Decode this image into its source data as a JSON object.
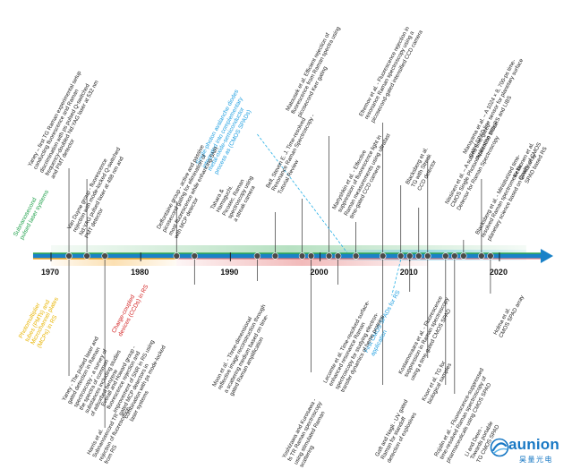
{
  "axis": {
    "years": [
      "1970",
      "1980",
      "1990",
      "2000",
      "2010",
      "2020"
    ],
    "year_values": [
      1970,
      1980,
      1990,
      2000,
      2010,
      2020
    ],
    "range": [
      1970,
      2024
    ]
  },
  "colors": {
    "axis_blue": "#1a82c8",
    "green": "#2fa84f",
    "orange": "#f5a623",
    "red": "#d93a3a",
    "cyan": "#27b0e6",
    "yellow_text": "#e8b400",
    "red_text": "#d21f1f",
    "blue_text": "#1d9ee0",
    "green_text": "#1ea04a"
  },
  "categories": {
    "subnano": [
      "Subnanosecond",
      "pulsed laser systems"
    ],
    "pmt": [
      "Photomultiplier",
      "tubes (PMTs) and",
      "Microchannel plates",
      "(MCPs) in RS"
    ],
    "ccd": [
      "Charge-coupled",
      "devices (CCDs) in RS"
    ],
    "cmos_spad": [
      "Single-photon avalanche diodes",
      "integrated into complementary",
      "metal-oxide-semiconductor",
      "process as (CMOS SPADs)"
    ],
    "first_cmos": [
      "First CMOS SPADs for RS",
      "application"
    ]
  },
  "events_top": [
    {
      "id": "yaney-1972",
      "year": 1972,
      "lines": [
        "Yaney – first TG Raman experimental setup",
        "conducting fluorescence and Raman",
        "discrimination with ps pulsed Q-switched",
        "frequency-doubled Nd:YAG laser at 532 nm",
        "and PMT detector"
      ]
    },
    {
      "id": "van-duyne",
      "year": 1974,
      "lines": [
        "Van Duyne group - fluorescence",
        "rejection with mode-locked Q-switched",
        "Nd:YAG pulsed laser at 488 nm and",
        "PMT detector"
      ]
    },
    {
      "id": "deffontaine",
      "year": 1984,
      "lines": [
        "Deffontaine group - active and passive",
        "picosecond gating for elimination of",
        "most fluorescence while enhancing SNR",
        "with MCP detector"
      ]
    },
    {
      "id": "tahara",
      "year": 1995,
      "lines": [
        "Tahara &",
        "Hamaguchi.",
        "Picosec. Raman",
        "spectroscopy using",
        "a streak camera"
      ]
    },
    {
      "id": "bell",
      "year": 1998,
      "lines": [
        "Bell, Steven E. J. Time-resolved",
        "Resonance Raman Spectroscopy -",
        "Tutorial Review"
      ]
    },
    {
      "id": "matousek",
      "year": 2001,
      "lines": [
        "Matousek et al. Efficient rejection of",
        "fluorescence from Raman spectra using",
        "picosecond Kerr gating"
      ]
    },
    {
      "id": "martyshkin",
      "year": 2004,
      "lines": [
        "Martyshkin et al. - Effective",
        "suppression of fluorescence light in",
        "Raman measurements using ultrafast",
        "time-gated CCD camera"
      ]
    },
    {
      "id": "efremov",
      "year": 2007,
      "lines": [
        "Efremov et al. - Fluorescence rejection in",
        "resonance Raman spectroscopy using a",
        "picosecond-gated intensified CCD camera"
      ]
    },
    {
      "id": "blacksberg-2010",
      "year": 2009,
      "lines": [
        "Blacksberg et al.",
        "TG with Streak",
        "CCD detector"
      ]
    },
    {
      "id": "nissinen",
      "year": 2011,
      "lines": [
        "Nissinen et al. – A sub-ns time-gated",
        "CMOS Single Photon Avalanche Diode",
        "Detector for Raman Spectroscopy"
      ]
    },
    {
      "id": "maruyama",
      "year": 2012,
      "lines": [
        "Maruyama et al. – A 1024 × 8, 700-ps time-",
        "gated SPAD line sensor for planetary surface",
        "exploration with RS and LIBS"
      ]
    },
    {
      "id": "blacksberg-2016",
      "year": 2016,
      "lines": [
        "Blacksberg et al. - Miniaturized time-",
        "resolved Raman spectrometer for",
        "planetary science based on SPAD array"
      ]
    },
    {
      "id": "kekkonen",
      "year": 2018,
      "lines": [
        "Kekkonen et al.",
        "Quality of CMOS",
        "SPAD based RS"
      ]
    }
  ],
  "events_bottom": [
    {
      "id": "yaney-pulsed",
      "year": 1972,
      "lines": [
        "Yaney - The pulsed laser and",
        "gated detection in Raman",
        "spectroscopy - a survey of",
        "the spectra of common",
        "substances including studies",
        "of adsorbed benzene"
      ]
    },
    {
      "id": "harris",
      "year": 1976,
      "lines": [
        "Harris et al.",
        "Subnanosecond TR",
        "rejection of fluorescence",
        "from RS"
      ]
    },
    {
      "id": "everall",
      "year": 1986,
      "lines": [
        "Everall and Howard group -",
        "fluorescence rejection and",
        "improvement of SNR in RS using",
        "gated MCP detectors in",
        "combination with ps mode-locked",
        "laser systems"
      ]
    },
    {
      "id": "moon",
      "year": 1993,
      "lines": [
        "Moon et al. - Three-dimensional",
        "reflective image reconstruction through",
        "a scattering medium based on time-",
        "gated Raman amplification"
      ]
    },
    {
      "id": "yoshizawa",
      "year": 1999,
      "lines": [
        "Yoshizawa and Kurosawa -",
        "fs TR Raman spectroscopy",
        "using stimulated Raman",
        "scattering"
      ]
    },
    {
      "id": "lecomte",
      "year": 2002,
      "lines": [
        "Lecomte et al. Time-resolved surface-",
        "enhanced resonance Raman",
        "spectroscopy for studying electron-",
        "transfer dynamics of heme proteins"
      ]
    },
    {
      "id": "gaft",
      "year": 2007,
      "lines": [
        "Gaft and Nagli - UV gated",
        "Raman for standoff",
        "detection of explosives"
      ]
    },
    {
      "id": "kostamovaara",
      "year": 2010,
      "lines": [
        "Kostamovaara et al. - Fluorescence",
        "suppression in Raman spectroscopy",
        "using a time-gated CMOS SPAD"
      ]
    },
    {
      "id": "knorr",
      "year": 2012,
      "lines": [
        "Knorr et al. TG for",
        "biological samples"
      ]
    },
    {
      "id": "rojalin",
      "year": 2014,
      "lines": [
        "Rojalin et al. - Fluorescence-suppressed",
        "time-resolved Raman spectroscopy of",
        "pharmaceuticals using CMOS SPAD"
      ]
    },
    {
      "id": "li-deen",
      "year": 2015,
      "lines": [
        "Li and Deen -",
        "Towards portable",
        "TG CMOS SPAD"
      ]
    },
    {
      "id": "holma",
      "year": 2019,
      "lines": [
        "Holma et al.",
        "CMOS SPAD array"
      ]
    }
  ],
  "logo": {
    "brand": "aunion",
    "subtitle": "昊量光电",
    "mark": "aunion-logo-mark"
  }
}
